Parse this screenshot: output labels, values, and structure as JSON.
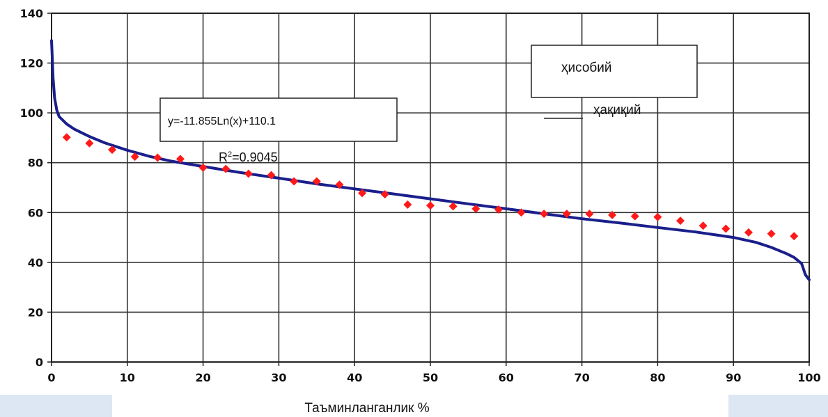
{
  "chart_data": {
    "type": "scatter",
    "xlabel": "Таъминланганлик %",
    "ylabel": "",
    "xlim": [
      0,
      100
    ],
    "ylim": [
      0,
      140
    ],
    "x_ticks": [
      0,
      10,
      20,
      30,
      40,
      50,
      60,
      70,
      80,
      90,
      100
    ],
    "y_ticks": [
      0,
      20,
      40,
      60,
      80,
      100,
      120,
      140
    ],
    "grid": true,
    "equation": "y=-11.855Ln(x)+110.1",
    "r_squared": {
      "prefix": "R",
      "sup": "2",
      "value": "=0.9045"
    },
    "legend": {
      "calculated": "ҳисобий",
      "actual": "ҳақиқий"
    },
    "colors": {
      "calculated": "#1a1f8c",
      "actual": "#ff1a1a"
    },
    "series": [
      {
        "name": "ҳақиқий",
        "kind": "points",
        "x": [
          2,
          5,
          8,
          11,
          14,
          17,
          20,
          23,
          26,
          29,
          32,
          35,
          38,
          41,
          44,
          47,
          50,
          53,
          56,
          59,
          62,
          65,
          68,
          71,
          74,
          77,
          80,
          83,
          86,
          89,
          92,
          95,
          98
        ],
        "y": [
          90.2,
          87.8,
          85.2,
          82.4,
          82,
          81.5,
          78,
          77.5,
          75.6,
          75,
          72.5,
          72.5,
          71.2,
          67.8,
          67.3,
          63.2,
          62.8,
          62.5,
          61.5,
          61.2,
          60,
          59.5,
          59.5,
          59.5,
          59,
          58.5,
          58.2,
          56.7,
          54.7,
          53.5,
          52,
          51.5,
          50.5
        ]
      },
      {
        "name": "ҳисобий",
        "kind": "curve",
        "x": [
          0,
          0.1,
          0.2,
          0.4,
          0.7,
          1,
          2,
          3,
          4,
          5,
          7,
          10,
          13,
          16,
          20,
          25,
          30,
          35,
          40,
          45,
          50,
          55,
          60,
          65,
          70,
          75,
          80,
          85,
          90,
          93,
          95,
          97,
          98,
          99,
          99.5,
          100
        ],
        "y": [
          129,
          122,
          114,
          106,
          101,
          98.5,
          95.5,
          93.5,
          92,
          90.5,
          88,
          85,
          82.5,
          80.5,
          78.5,
          76,
          73.8,
          71.5,
          69.5,
          67.5,
          65.5,
          63.5,
          61.5,
          59.5,
          57.5,
          55.8,
          54,
          52.2,
          50,
          48,
          46,
          43.5,
          42,
          39.5,
          35,
          33
        ]
      }
    ]
  }
}
